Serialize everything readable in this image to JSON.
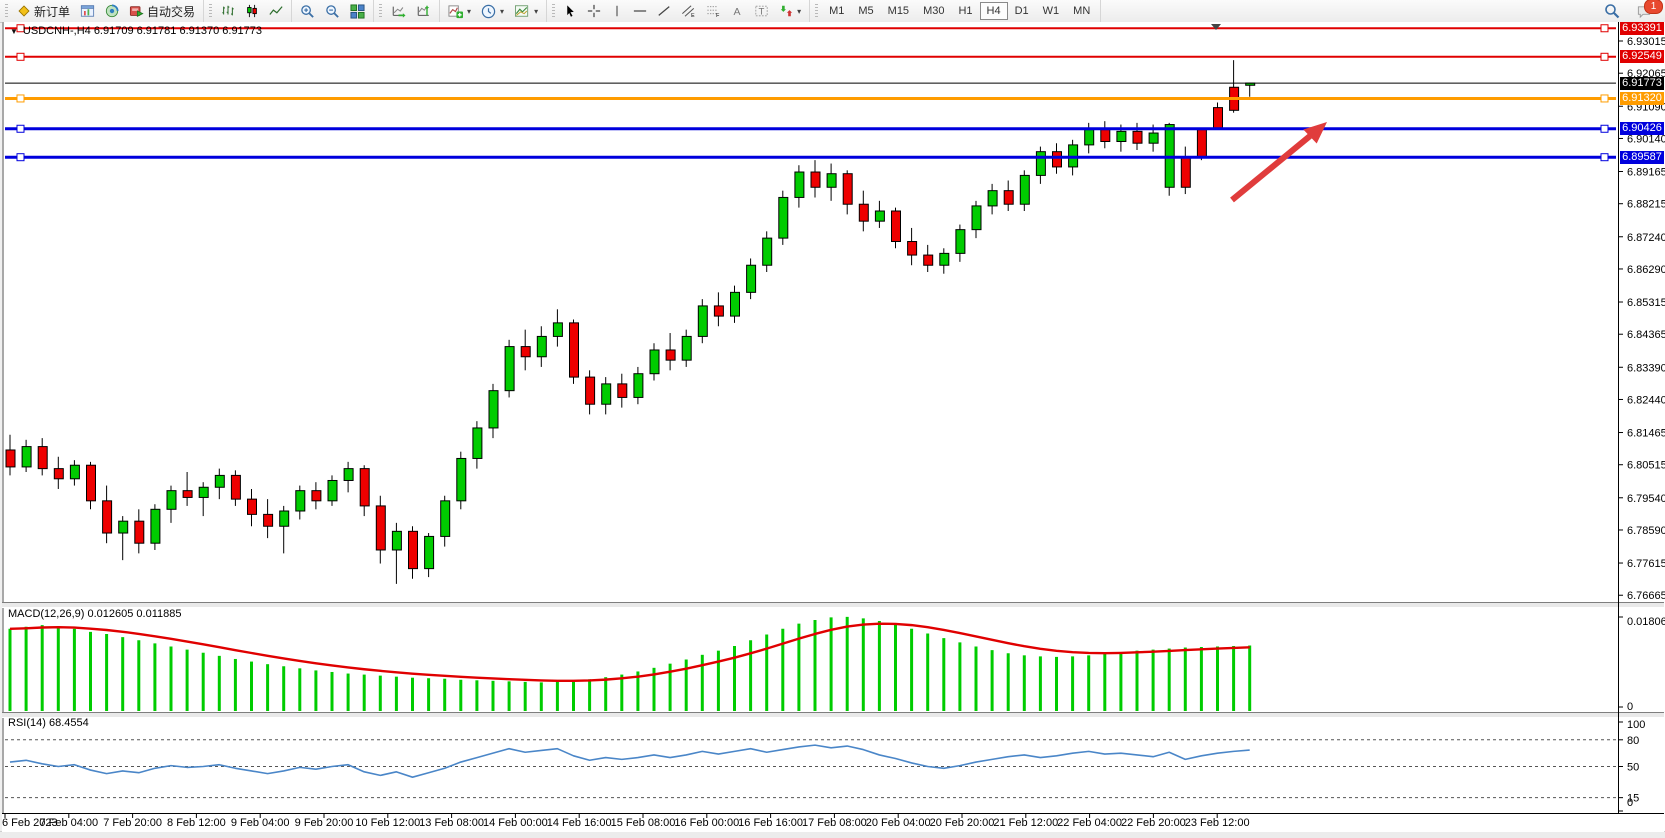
{
  "toolbar": {
    "new_order_label": "新订单",
    "autotrade_label": "自动交易",
    "timeframes": [
      "M1",
      "M5",
      "M15",
      "M30",
      "H1",
      "H4",
      "D1",
      "W1",
      "MN"
    ],
    "active_timeframe": "H4",
    "notification_count": "1"
  },
  "chart_data": {
    "type": "candlestick",
    "title": "USDCNH-,H4 6.91709 6.91781 6.91370 6.91773",
    "symbol": "USDCNH-",
    "period": "H4",
    "ohlc": {
      "open": "6.91709",
      "high": "6.91781",
      "low": "6.91370",
      "close": "6.91773"
    },
    "current_price": {
      "value": 6.91773,
      "label": "6.91773",
      "color": "#000000"
    },
    "levels": [
      {
        "price": 6.93391,
        "label": "6.93391",
        "color": "#e00000",
        "width": 2
      },
      {
        "price": 6.92549,
        "label": "6.92549",
        "color": "#e00000",
        "width": 2
      },
      {
        "price": 6.9132,
        "label": "6.91320",
        "color": "#ff9c00",
        "width": 3
      },
      {
        "price": 6.90426,
        "label": "6.90426",
        "color": "#0000dd",
        "width": 3
      },
      {
        "price": 6.89587,
        "label": "6.89587",
        "color": "#0000dd",
        "width": 3
      }
    ],
    "price_ticks": [
      "6.93015",
      "6.92065",
      "6.91090",
      "6.90140",
      "6.89165",
      "6.88215",
      "6.87240",
      "6.86290",
      "6.85315",
      "6.84365",
      "6.83390",
      "6.82440",
      "6.81465",
      "6.80515",
      "6.79540",
      "6.78590",
      "6.77615",
      "6.76665"
    ],
    "time_labels": [
      "6 Feb 2023",
      "7 Feb 04:00",
      "7 Feb 20:00",
      "8 Feb 12:00",
      "9 Feb 04:00",
      "9 Feb 20:00",
      "10 Feb 12:00",
      "13 Feb 08:00",
      "14 Feb 00:00",
      "14 Feb 16:00",
      "15 Feb 08:00",
      "16 Feb 00:00",
      "16 Feb 16:00",
      "17 Feb 08:00",
      "20 Feb 04:00",
      "20 Feb 20:00",
      "21 Feb 12:00",
      "22 Feb 04:00",
      "22 Feb 20:00",
      "23 Feb 12:00"
    ],
    "up_color": "#00cc00",
    "down_color": "#ee0000",
    "candles": [
      [
        6.8095,
        6.814,
        6.802,
        6.8045
      ],
      [
        6.8045,
        6.8125,
        6.803,
        6.8105
      ],
      [
        6.8105,
        6.813,
        6.802,
        6.804
      ],
      [
        6.804,
        6.8075,
        6.798,
        6.801
      ],
      [
        6.801,
        6.8065,
        6.799,
        6.805
      ],
      [
        6.805,
        6.806,
        6.792,
        6.7945
      ],
      [
        6.7945,
        6.799,
        6.782,
        6.785
      ],
      [
        6.785,
        6.79,
        6.777,
        6.7885
      ],
      [
        6.7885,
        6.792,
        6.779,
        6.782
      ],
      [
        6.782,
        6.7935,
        6.78,
        6.792
      ],
      [
        6.792,
        6.799,
        6.788,
        6.7975
      ],
      [
        6.7975,
        6.803,
        6.793,
        6.7955
      ],
      [
        6.7955,
        6.8,
        6.79,
        6.7985
      ],
      [
        6.7985,
        6.804,
        6.795,
        6.802
      ],
      [
        6.802,
        6.8035,
        6.793,
        6.795
      ],
      [
        6.795,
        6.798,
        6.787,
        6.7905
      ],
      [
        6.7905,
        6.795,
        6.7835,
        6.787
      ],
      [
        6.787,
        6.793,
        6.779,
        6.7915
      ],
      [
        6.7915,
        6.799,
        6.789,
        6.7975
      ],
      [
        6.7975,
        6.8,
        6.792,
        6.7945
      ],
      [
        6.7945,
        6.802,
        6.793,
        6.8005
      ],
      [
        6.8005,
        6.806,
        6.797,
        6.804
      ],
      [
        6.804,
        6.805,
        6.79,
        6.793
      ],
      [
        6.793,
        6.796,
        6.776,
        6.78
      ],
      [
        6.78,
        6.788,
        6.77,
        6.7855
      ],
      [
        6.7855,
        6.787,
        6.7715,
        6.7745
      ],
      [
        6.7745,
        6.785,
        6.772,
        6.784
      ],
      [
        6.784,
        6.796,
        6.781,
        6.7945
      ],
      [
        6.7945,
        6.809,
        6.792,
        6.807
      ],
      [
        6.807,
        6.818,
        6.804,
        6.816
      ],
      [
        6.816,
        6.829,
        6.813,
        6.827
      ],
      [
        6.827,
        6.842,
        6.825,
        6.84
      ],
      [
        6.84,
        6.845,
        6.833,
        6.837
      ],
      [
        6.837,
        6.846,
        6.834,
        6.843
      ],
      [
        6.843,
        6.851,
        6.84,
        6.847
      ],
      [
        6.847,
        6.848,
        6.829,
        6.831
      ],
      [
        6.831,
        6.833,
        6.82,
        6.823
      ],
      [
        6.823,
        6.831,
        6.82,
        6.829
      ],
      [
        6.829,
        6.832,
        6.822,
        6.825
      ],
      [
        6.825,
        6.834,
        6.823,
        6.832
      ],
      [
        6.832,
        6.841,
        6.83,
        6.839
      ],
      [
        6.839,
        6.844,
        6.833,
        6.836
      ],
      [
        6.836,
        6.845,
        6.834,
        6.843
      ],
      [
        6.843,
        6.854,
        6.841,
        6.852
      ],
      [
        6.852,
        6.856,
        6.846,
        6.849
      ],
      [
        6.849,
        6.858,
        6.847,
        6.856
      ],
      [
        6.856,
        6.866,
        6.854,
        6.864
      ],
      [
        6.864,
        6.874,
        6.862,
        6.872
      ],
      [
        6.872,
        6.886,
        6.87,
        6.884
      ],
      [
        6.884,
        6.8935,
        6.881,
        6.8915
      ],
      [
        6.8915,
        6.895,
        6.884,
        6.887
      ],
      [
        6.887,
        6.894,
        6.883,
        6.891
      ],
      [
        6.891,
        6.892,
        6.879,
        6.882
      ],
      [
        6.882,
        6.886,
        6.874,
        6.877
      ],
      [
        6.877,
        6.883,
        6.875,
        6.88
      ],
      [
        6.88,
        6.881,
        6.869,
        6.871
      ],
      [
        6.871,
        6.875,
        6.864,
        6.867
      ],
      [
        6.867,
        6.87,
        6.862,
        6.864
      ],
      [
        6.864,
        6.869,
        6.8615,
        6.8675
      ],
      [
        6.8675,
        6.876,
        6.865,
        6.8745
      ],
      [
        6.8745,
        6.883,
        6.872,
        6.8815
      ],
      [
        6.8815,
        6.888,
        6.879,
        6.886
      ],
      [
        6.886,
        6.889,
        6.88,
        6.882
      ],
      [
        6.882,
        6.892,
        6.88,
        6.8905
      ],
      [
        6.8905,
        6.899,
        6.888,
        6.8975
      ],
      [
        6.8975,
        6.9,
        6.891,
        6.893
      ],
      [
        6.893,
        6.901,
        6.8905,
        6.8995
      ],
      [
        6.8995,
        6.906,
        6.897,
        6.904
      ],
      [
        6.904,
        6.9065,
        6.8985,
        6.9005
      ],
      [
        6.9005,
        6.9055,
        6.8975,
        6.9035
      ],
      [
        6.9035,
        6.906,
        6.898,
        6.9
      ],
      [
        6.9,
        6.9055,
        6.8975,
        6.903
      ],
      [
        6.887,
        6.906,
        6.8845,
        6.9055
      ],
      [
        6.896,
        6.899,
        6.885,
        6.887
      ],
      [
        6.904,
        6.9045,
        6.895,
        6.896
      ],
      [
        6.9105,
        6.912,
        6.904,
        6.9045
      ],
      [
        6.9165,
        6.9245,
        6.909,
        6.9097
      ],
      [
        6.91709,
        6.91781,
        6.9137,
        6.91773
      ]
    ],
    "macd": {
      "label": "MACD(12,26,9) 0.012605 0.011885",
      "main_value": "0.012605",
      "signal_value": "0.011885",
      "max_label": "0.018068",
      "min_label": "0",
      "max_value": 0.018068,
      "hist_color": "#00cc00",
      "signal_color": "#e00000",
      "hist": [
        0.0158,
        0.0162,
        0.0165,
        0.0163,
        0.0158,
        0.0152,
        0.0148,
        0.0142,
        0.0136,
        0.013,
        0.0124,
        0.0118,
        0.0112,
        0.0106,
        0.01,
        0.0095,
        0.009,
        0.0086,
        0.0082,
        0.0078,
        0.0075,
        0.0072,
        0.007,
        0.0068,
        0.0066,
        0.0064,
        0.0063,
        0.0062,
        0.006,
        0.0059,
        0.0058,
        0.0057,
        0.0056,
        0.0055,
        0.0056,
        0.0058,
        0.0061,
        0.0065,
        0.007,
        0.0076,
        0.0083,
        0.0091,
        0.0099,
        0.0108,
        0.0116,
        0.0125,
        0.0136,
        0.0147,
        0.0158,
        0.0168,
        0.0175,
        0.018,
        0.0181,
        0.0178,
        0.0173,
        0.0166,
        0.0158,
        0.0149,
        0.014,
        0.0132,
        0.0124,
        0.0117,
        0.0111,
        0.0107,
        0.0105,
        0.0104,
        0.0105,
        0.0107,
        0.011,
        0.0113,
        0.0116,
        0.0118,
        0.012,
        0.0122,
        0.0123,
        0.0124,
        0.0125,
        0.0126
      ]
    },
    "rsi": {
      "label": "RSI(14) 68.4554",
      "value": "68.4554",
      "line_color": "#4a86c8",
      "ticks": [
        {
          "v": 100,
          "label": "100"
        },
        {
          "v": 80,
          "label": "80"
        },
        {
          "v": 50,
          "label": "50"
        },
        {
          "v": 15,
          "label": "15"
        },
        {
          "v": 0,
          "label": "0"
        }
      ],
      "dashed_levels": [
        80,
        50,
        15
      ],
      "values": [
        55,
        57,
        53,
        50,
        52,
        46,
        42,
        45,
        43,
        48,
        51,
        49,
        50,
        52,
        48,
        45,
        42,
        45,
        49,
        47,
        50,
        52,
        44,
        40,
        44,
        38,
        43,
        48,
        55,
        60,
        65,
        70,
        66,
        68,
        70,
        62,
        57,
        60,
        58,
        60,
        63,
        60,
        63,
        67,
        64,
        67,
        70,
        66,
        69,
        72,
        74,
        71,
        73,
        69,
        63,
        59,
        54,
        50,
        48,
        51,
        55,
        58,
        61,
        63,
        60,
        62,
        65,
        67,
        64,
        65,
        63,
        61,
        66,
        58,
        62,
        65,
        67,
        68.46
      ]
    },
    "arrow": {
      "color": "#e03c3c"
    }
  }
}
